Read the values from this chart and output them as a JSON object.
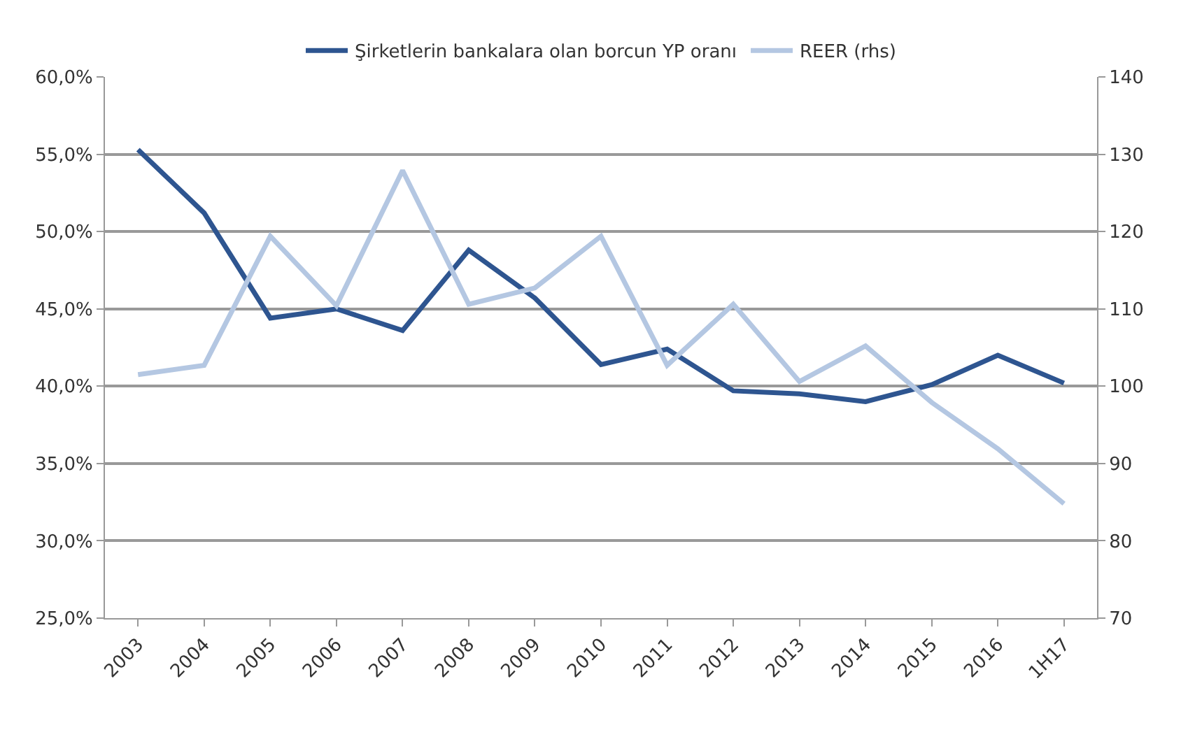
{
  "chart_data": {
    "type": "line",
    "categories": [
      "2003",
      "2004",
      "2005",
      "2006",
      "2007",
      "2008",
      "2009",
      "2010",
      "2011",
      "2012",
      "2013",
      "2014",
      "2015",
      "2016",
      "1H17"
    ],
    "series": [
      {
        "name": "Şirketlerin bankalara olan borcun YP oranı",
        "color": "#2e5590",
        "values": [
          55.3,
          51.2,
          44.4,
          45.0,
          43.6,
          48.8,
          45.7,
          41.4,
          42.4,
          39.7,
          39.5,
          39.0,
          40.1,
          42.0,
          40.2
        ]
      },
      {
        "name": "REER (rhs)",
        "color": "#b4c7e2",
        "axis": "y2",
        "values": [
          101.5,
          102.7,
          119.4,
          110.4,
          127.9,
          110.6,
          112.7,
          119.4,
          102.7,
          110.6,
          100.6,
          105.2,
          97.9,
          91.9,
          84.8
        ]
      }
    ],
    "ylim": [
      25,
      60
    ],
    "yticks": [
      {
        "value": 25,
        "label": "25,0%"
      },
      {
        "value": 30,
        "label": "30,0%"
      },
      {
        "value": 35,
        "label": "35,0%"
      },
      {
        "value": 40,
        "label": "40,0%"
      },
      {
        "value": 45,
        "label": "45,0%"
      },
      {
        "value": 50,
        "label": "50,0%"
      },
      {
        "value": 55,
        "label": "55,0%"
      },
      {
        "value": 60,
        "label": "60,0%"
      }
    ],
    "y2lim": [
      70,
      140
    ],
    "y2ticks": [
      70,
      80,
      90,
      100,
      110,
      120,
      130,
      140
    ],
    "grid": "y",
    "legend": "top",
    "marker": "none",
    "line_style": "solid"
  }
}
